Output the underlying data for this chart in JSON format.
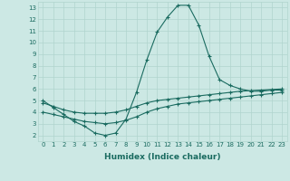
{
  "xlabel": "Humidex (Indice chaleur)",
  "xlim": [
    -0.5,
    23.5
  ],
  "ylim": [
    1.5,
    13.5
  ],
  "xticks": [
    0,
    1,
    2,
    3,
    4,
    5,
    6,
    7,
    8,
    9,
    10,
    11,
    12,
    13,
    14,
    15,
    16,
    17,
    18,
    19,
    20,
    21,
    22,
    23
  ],
  "yticks": [
    2,
    3,
    4,
    5,
    6,
    7,
    8,
    9,
    10,
    11,
    12,
    13
  ],
  "bg_color": "#cce8e4",
  "line_color": "#1a6b60",
  "line1_x": [
    0,
    1,
    2,
    3,
    4,
    5,
    6,
    7,
    8,
    9,
    10,
    11,
    12,
    13,
    14,
    15,
    16,
    17,
    18,
    19,
    20,
    21,
    22,
    23
  ],
  "line1_y": [
    5.0,
    4.4,
    3.8,
    3.2,
    2.8,
    2.2,
    2.0,
    2.2,
    3.4,
    5.7,
    8.5,
    10.9,
    12.2,
    13.2,
    13.2,
    11.5,
    8.8,
    6.8,
    6.3,
    6.0,
    5.8,
    5.8,
    5.9,
    5.9
  ],
  "line2_x": [
    0,
    1,
    2,
    3,
    4,
    5,
    6,
    7,
    8,
    9,
    10,
    11,
    12,
    13,
    14,
    15,
    16,
    17,
    18,
    19,
    20,
    21,
    22,
    23
  ],
  "line2_y": [
    4.8,
    4.5,
    4.2,
    4.0,
    3.9,
    3.9,
    3.9,
    4.0,
    4.2,
    4.5,
    4.8,
    5.0,
    5.1,
    5.2,
    5.3,
    5.4,
    5.5,
    5.6,
    5.7,
    5.8,
    5.85,
    5.9,
    5.95,
    6.0
  ],
  "line3_x": [
    0,
    1,
    2,
    3,
    4,
    5,
    6,
    7,
    8,
    9,
    10,
    11,
    12,
    13,
    14,
    15,
    16,
    17,
    18,
    19,
    20,
    21,
    22,
    23
  ],
  "line3_y": [
    4.0,
    3.8,
    3.6,
    3.4,
    3.2,
    3.1,
    3.0,
    3.1,
    3.3,
    3.6,
    4.0,
    4.3,
    4.5,
    4.7,
    4.8,
    4.9,
    5.0,
    5.1,
    5.2,
    5.3,
    5.4,
    5.5,
    5.6,
    5.7
  ],
  "grid_color": "#b0d4ce",
  "tick_fontsize": 5.0,
  "label_fontsize": 6.5,
  "grid_linewidth": 0.5,
  "line_linewidth": 0.8,
  "marker_size": 3.0,
  "marker_lw": 0.8
}
